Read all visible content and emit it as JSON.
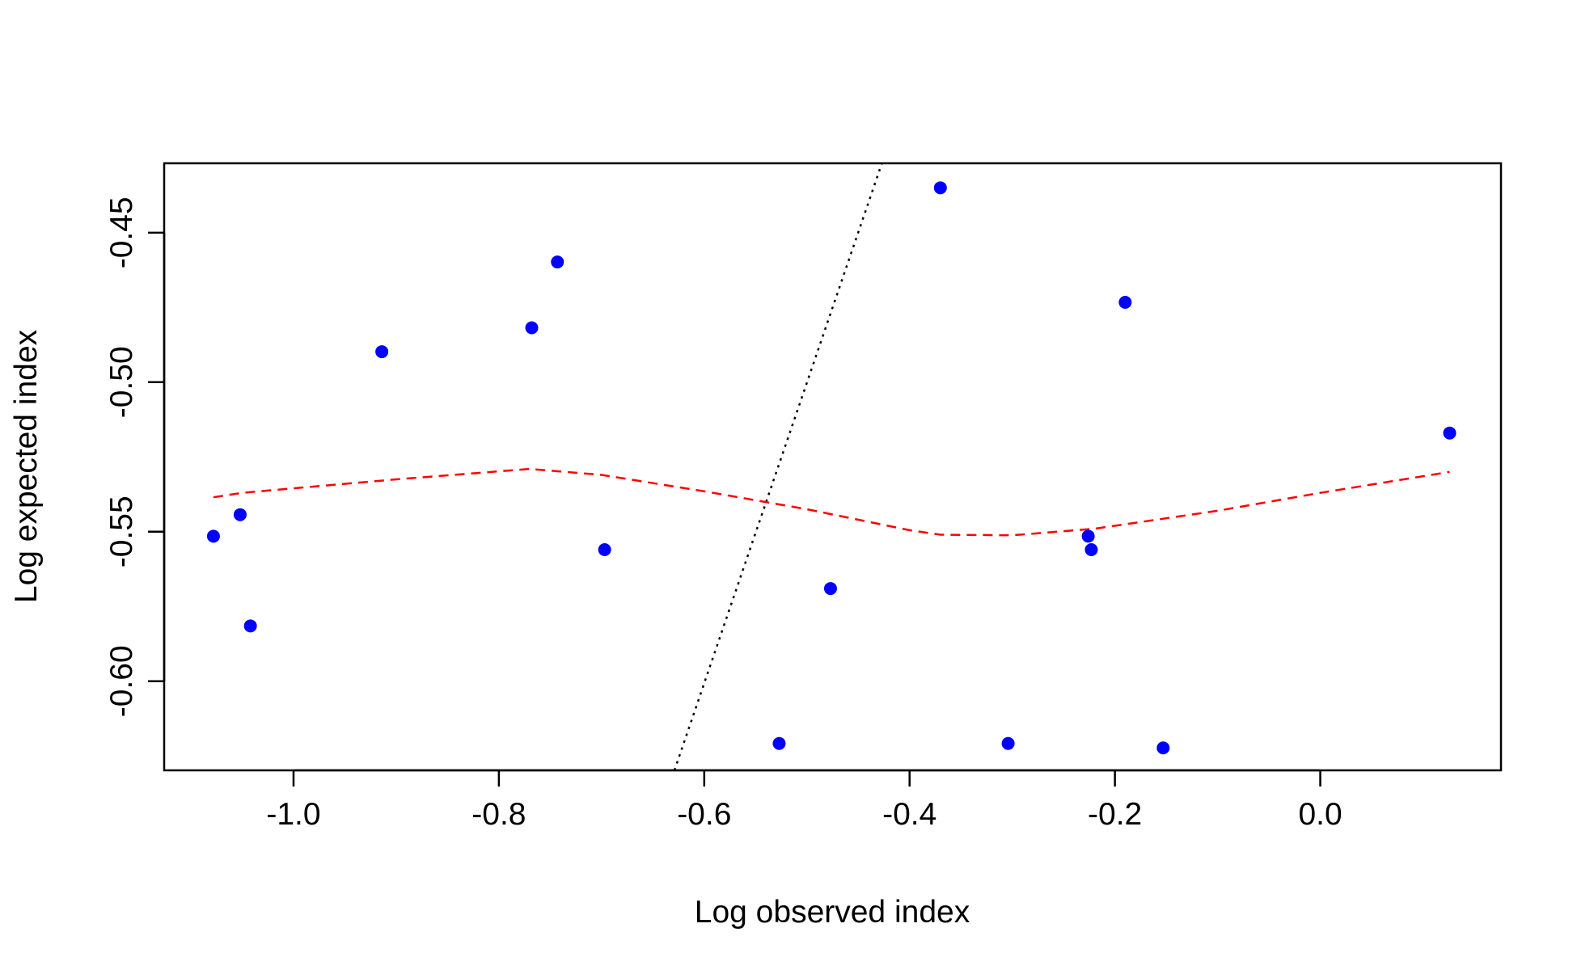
{
  "chart_data": {
    "type": "scatter",
    "title": "",
    "xlabel": "Log observed index",
    "ylabel": "Log expected index",
    "xlim": [
      -1.126,
      0.176
    ],
    "ylim": [
      -0.6298,
      -0.4268
    ],
    "xticks": [
      -1.0,
      -0.8,
      -0.6,
      -0.4,
      -0.2,
      0.0
    ],
    "xtick_labels": [
      "-1.0",
      "-0.8",
      "-0.6",
      "-0.4",
      "-0.2",
      "0.0"
    ],
    "yticks": [
      -0.6,
      -0.55,
      -0.5,
      -0.45
    ],
    "ytick_labels": [
      "-0.60",
      "-0.55",
      "-0.50",
      "-0.45"
    ],
    "grid": false,
    "legend": "none",
    "colors": {
      "points": "#0000ff",
      "smooth_line": "#ff0000",
      "reference_line": "#000000"
    },
    "points": [
      {
        "x": -1.078,
        "y": -0.5515
      },
      {
        "x": -1.052,
        "y": -0.5443
      },
      {
        "x": -1.042,
        "y": -0.5815
      },
      {
        "x": -0.914,
        "y": -0.4898
      },
      {
        "x": -0.768,
        "y": -0.4818
      },
      {
        "x": -0.743,
        "y": -0.4598
      },
      {
        "x": -0.697,
        "y": -0.556
      },
      {
        "x": -0.527,
        "y": -0.6208
      },
      {
        "x": -0.477,
        "y": -0.569
      },
      {
        "x": -0.37,
        "y": -0.435
      },
      {
        "x": -0.304,
        "y": -0.6208
      },
      {
        "x": -0.226,
        "y": -0.5515
      },
      {
        "x": -0.223,
        "y": -0.556
      },
      {
        "x": -0.19,
        "y": -0.4733
      },
      {
        "x": -0.153,
        "y": -0.6223
      },
      {
        "x": 0.126,
        "y": -0.517
      }
    ],
    "smooth_line": [
      {
        "x": -1.078,
        "y": -0.5385
      },
      {
        "x": -1.05,
        "y": -0.537
      },
      {
        "x": -1.0,
        "y": -0.5355
      },
      {
        "x": -0.9,
        "y": -0.5325
      },
      {
        "x": -0.77,
        "y": -0.529
      },
      {
        "x": -0.7,
        "y": -0.531
      },
      {
        "x": -0.6,
        "y": -0.5365
      },
      {
        "x": -0.5,
        "y": -0.5425
      },
      {
        "x": -0.4,
        "y": -0.5495
      },
      {
        "x": -0.37,
        "y": -0.551
      },
      {
        "x": -0.3,
        "y": -0.5512
      },
      {
        "x": -0.22,
        "y": -0.549
      },
      {
        "x": -0.1,
        "y": -0.543
      },
      {
        "x": 0.0,
        "y": -0.537
      },
      {
        "x": 0.126,
        "y": -0.53
      }
    ],
    "reference_line": [
      {
        "x": -0.629,
        "y": -0.6298
      },
      {
        "x": -0.427,
        "y": -0.4268
      }
    ]
  }
}
